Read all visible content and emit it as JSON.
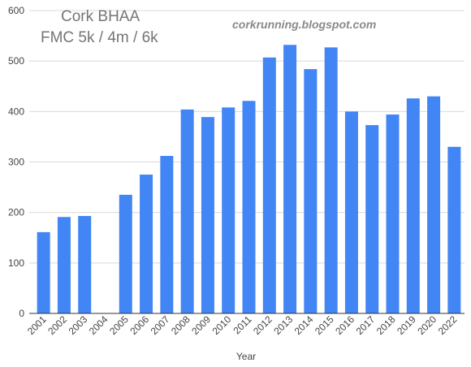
{
  "chart_data": {
    "type": "bar",
    "title": "Cork BHAA",
    "subtitle": "FMC 5k / 4m / 6k",
    "annotation": "corkrunning.blogspot.com",
    "xlabel": "Year",
    "ylabel": "",
    "ylim": [
      0,
      600
    ],
    "yticks": [
      "0",
      "100",
      "200",
      "300",
      "400",
      "500",
      "600"
    ],
    "grid": true,
    "bar_color": "#4285f4",
    "categories": [
      "2001",
      "2002",
      "2003",
      "2004",
      "2005",
      "2006",
      "2007",
      "2008",
      "2009",
      "2010",
      "2011",
      "2012",
      "2013",
      "2014",
      "2015",
      "2016",
      "2017",
      "2018",
      "2019",
      "2020",
      "2022"
    ],
    "values": [
      161,
      191,
      193,
      null,
      235,
      275,
      312,
      404,
      389,
      408,
      421,
      507,
      532,
      484,
      527,
      400,
      373,
      394,
      426,
      430,
      330
    ]
  }
}
